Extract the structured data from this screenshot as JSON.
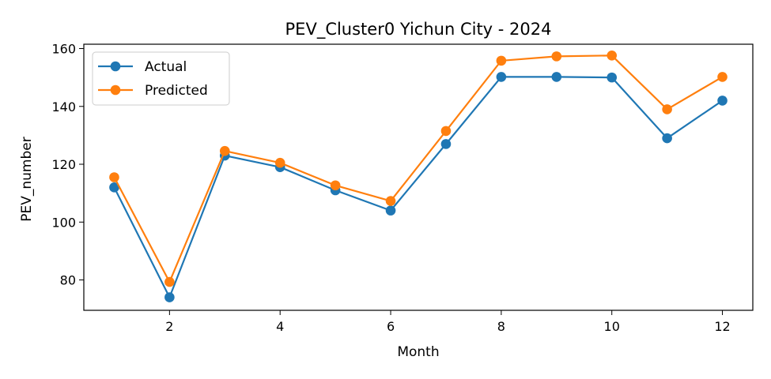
{
  "chart_data": {
    "type": "line",
    "title": "PEV_Cluster0 Yichun City - 2024",
    "xlabel": "Month",
    "ylabel": "PEV_number",
    "x": [
      1,
      2,
      3,
      4,
      5,
      6,
      7,
      8,
      9,
      10,
      11,
      12
    ],
    "xlim": [
      0.45,
      12.55
    ],
    "ylim": [
      69.5,
      161.5
    ],
    "xticks": [
      2,
      4,
      6,
      8,
      10,
      12
    ],
    "yticks": [
      80,
      100,
      120,
      140,
      160
    ],
    "grid": false,
    "legend": "upper-left",
    "series": [
      {
        "name": "Actual",
        "color": "#1f77b4",
        "marker": "circle",
        "values": [
          112,
          74,
          123,
          119,
          111,
          104,
          127,
          150.2,
          150.2,
          150,
          129,
          142
        ]
      },
      {
        "name": "Predicted",
        "color": "#ff7f0e",
        "marker": "circle",
        "values": [
          115.5,
          79.3,
          124.6,
          120.5,
          112.7,
          107.3,
          131.5,
          155.8,
          157.3,
          157.6,
          139,
          150.2
        ]
      }
    ]
  }
}
